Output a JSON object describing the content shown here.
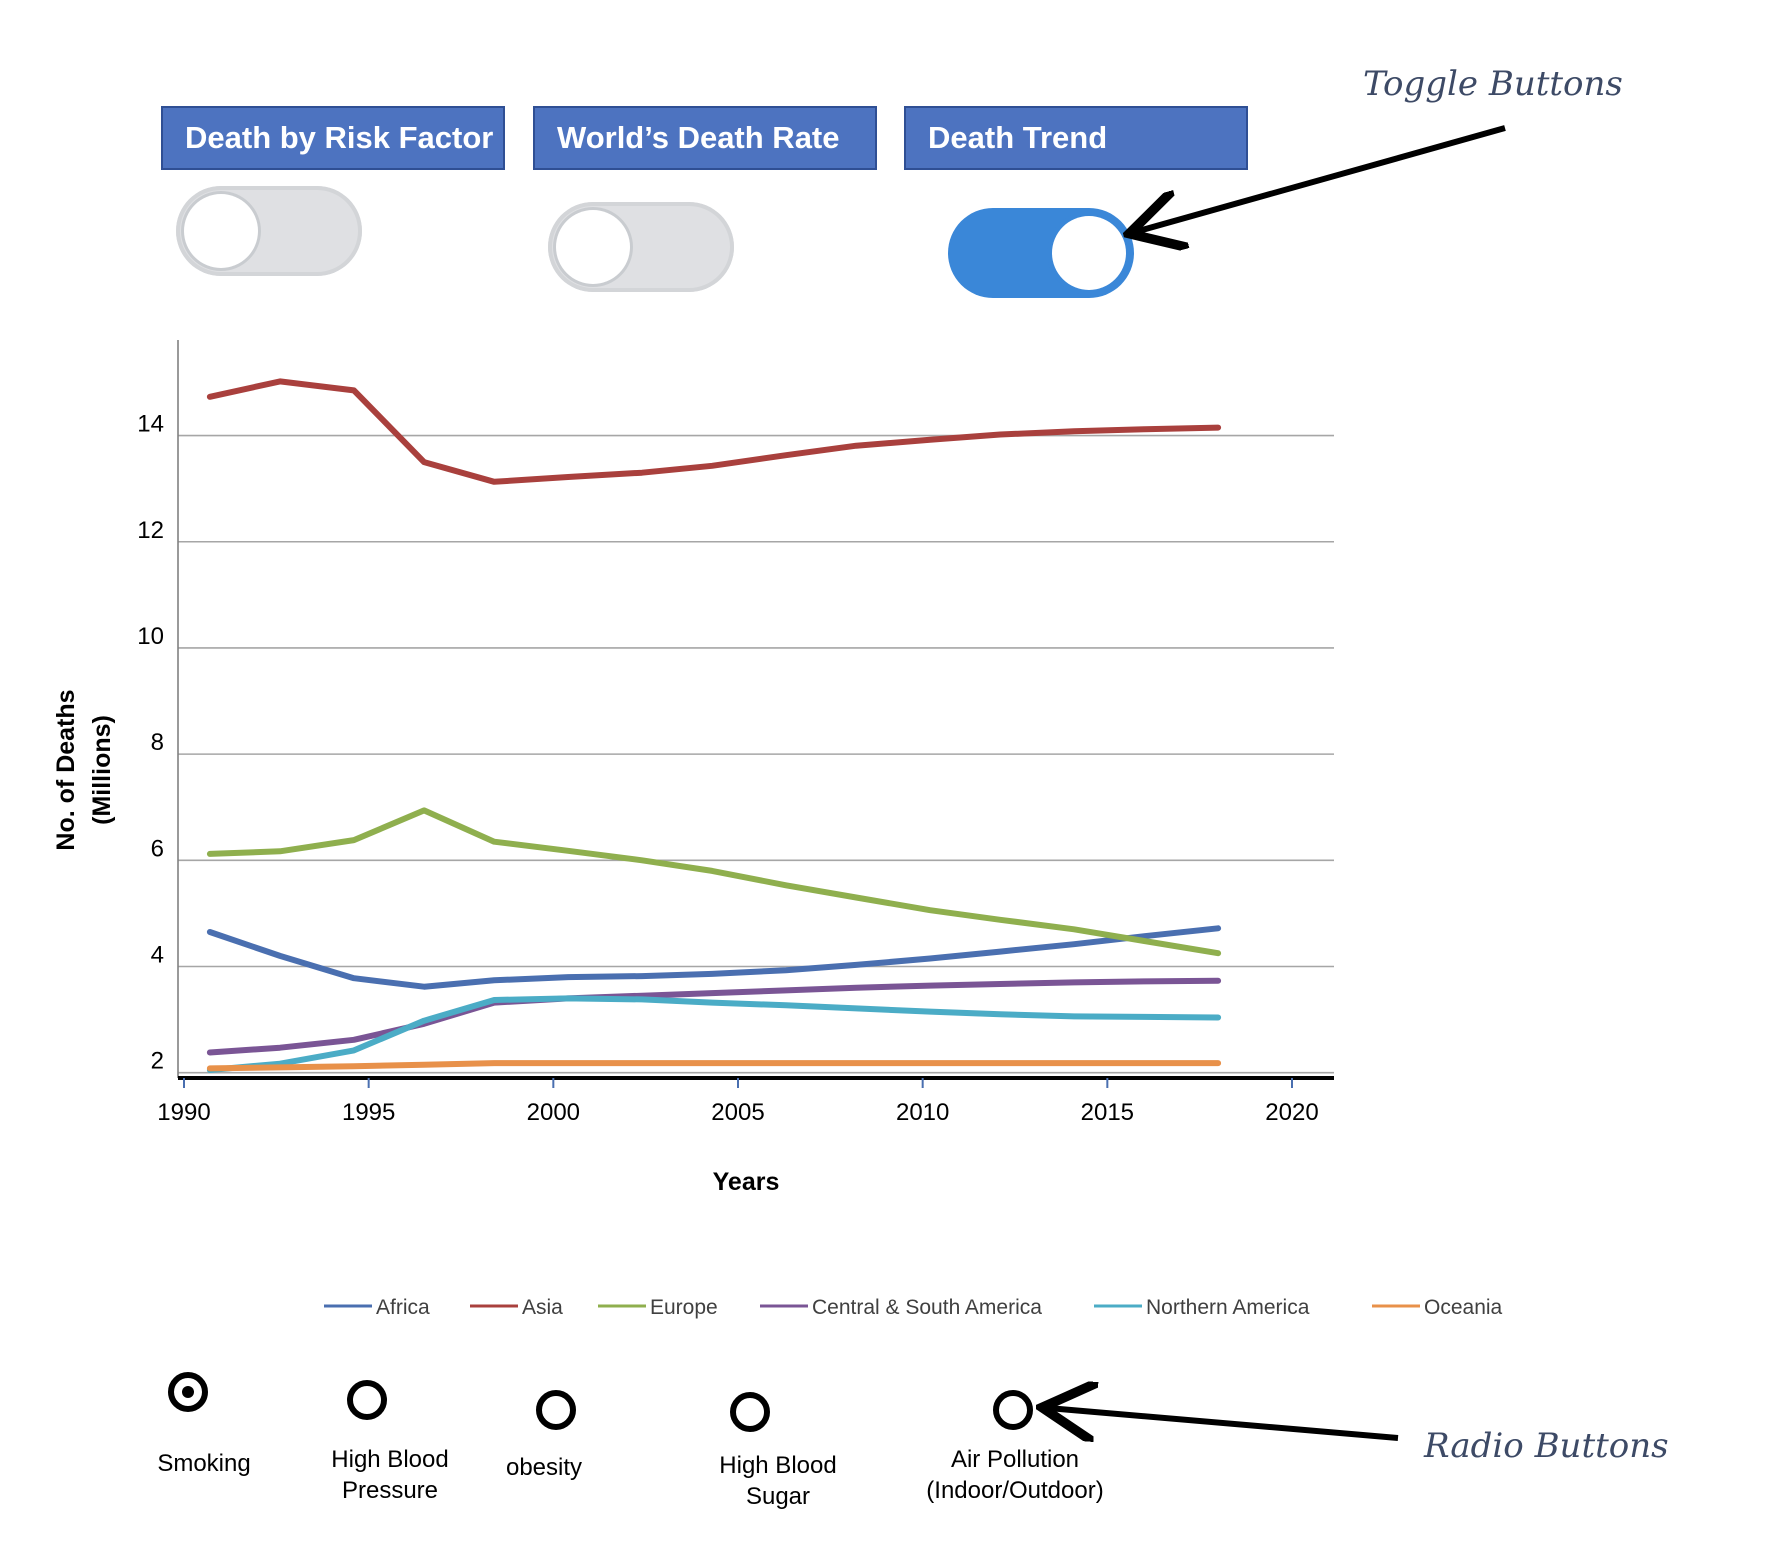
{
  "tabs": [
    {
      "label": "Death by Risk Factor"
    },
    {
      "label": "World’s Death Rate"
    },
    {
      "label": "Death Trend"
    }
  ],
  "toggles": [
    {
      "state": "off"
    },
    {
      "state": "off"
    },
    {
      "state": "on"
    }
  ],
  "annotations": {
    "toggle_buttons": "Toggle Buttons",
    "radio_buttons": "Radio Buttons"
  },
  "radio_group": {
    "selected": "Smoking",
    "options": [
      {
        "label": "Smoking"
      },
      {
        "label": "High Blood\nPressure"
      },
      {
        "label": "obesity"
      },
      {
        "label": "High Blood\nSugar"
      },
      {
        "label": "Air Pollution\n(Indoor/Outdoor)"
      }
    ]
  },
  "chart_data": {
    "type": "line",
    "title": "",
    "xlabel": "Years",
    "ylabel": "No. of Deaths\n(Millions)",
    "xlim": [
      1990,
      2021
    ],
    "ylim": [
      1.9,
      15.8
    ],
    "xticks": [
      "1990",
      "1995",
      "2000",
      "2005",
      "2010",
      "2015",
      "2020"
    ],
    "yticks": [
      "2",
      "4",
      "6",
      "8",
      "10",
      "12",
      "14"
    ],
    "grid": "horizontal",
    "legend_position": "bottom",
    "series": [
      {
        "name": "Africa",
        "color": "#4a6fb0",
        "x": [
          1990.7,
          1992.6,
          1994.6,
          1996.5,
          1998.4,
          2000.4,
          2002.4,
          2004.3,
          2006.3,
          2008.2,
          2010.2,
          2012.1,
          2014.1,
          2016.0,
          2018.0
        ],
        "y": [
          4.65,
          4.2,
          3.78,
          3.62,
          3.74,
          3.8,
          3.82,
          3.86,
          3.93,
          4.03,
          4.15,
          4.28,
          4.42,
          4.57,
          4.72
        ]
      },
      {
        "name": "Asia",
        "color": "#a9403d",
        "x": [
          1990.7,
          1992.6,
          1994.6,
          1996.5,
          1998.4,
          2000.4,
          2002.4,
          2004.3,
          2006.3,
          2008.2,
          2010.2,
          2012.1,
          2014.1,
          2016.0,
          2018.0
        ],
        "y": [
          14.73,
          15.02,
          14.85,
          13.5,
          13.13,
          13.22,
          13.3,
          13.43,
          13.63,
          13.81,
          13.92,
          14.02,
          14.08,
          14.12,
          14.15
        ]
      },
      {
        "name": "Europe",
        "color": "#8faf4e",
        "x": [
          1990.7,
          1992.6,
          1994.6,
          1996.5,
          1998.4,
          2000.4,
          2002.4,
          2004.3,
          2006.3,
          2008.2,
          2010.2,
          2012.1,
          2014.1,
          2016.0,
          2018.0
        ],
        "y": [
          6.12,
          6.17,
          6.38,
          6.94,
          6.35,
          6.18,
          6.0,
          5.8,
          5.53,
          5.3,
          5.06,
          4.88,
          4.7,
          4.48,
          4.25
        ]
      },
      {
        "name": "Central & South America",
        "color": "#7a5595",
        "x": [
          1990.7,
          1992.6,
          1994.6,
          1996.5,
          1998.4,
          2000.4,
          2002.4,
          2004.3,
          2006.3,
          2008.2,
          2010.2,
          2012.1,
          2014.1,
          2016.0,
          2018.0
        ],
        "y": [
          2.38,
          2.47,
          2.62,
          2.92,
          3.32,
          3.4,
          3.45,
          3.5,
          3.55,
          3.6,
          3.64,
          3.67,
          3.7,
          3.72,
          3.73
        ]
      },
      {
        "name": "Northern America",
        "color": "#4bacc6",
        "x": [
          1990.7,
          1992.6,
          1994.6,
          1996.5,
          1998.4,
          2000.4,
          2002.4,
          2004.3,
          2006.3,
          2008.2,
          2010.2,
          2012.1,
          2014.1,
          2016.0,
          2018.0
        ],
        "y": [
          2.05,
          2.17,
          2.42,
          2.98,
          3.37,
          3.4,
          3.38,
          3.32,
          3.27,
          3.21,
          3.15,
          3.1,
          3.06,
          3.05,
          3.04
        ]
      },
      {
        "name": "Oceania",
        "color": "#e8914a",
        "x": [
          1990.7,
          1992.6,
          1994.6,
          1996.5,
          1998.4,
          2000.4,
          2002.4,
          2004.3,
          2006.3,
          2008.2,
          2010.2,
          2012.1,
          2014.1,
          2016.0,
          2018.0
        ],
        "y": [
          2.08,
          2.1,
          2.12,
          2.15,
          2.18,
          2.18,
          2.18,
          2.18,
          2.18,
          2.18,
          2.18,
          2.18,
          2.18,
          2.18,
          2.18
        ]
      }
    ]
  }
}
